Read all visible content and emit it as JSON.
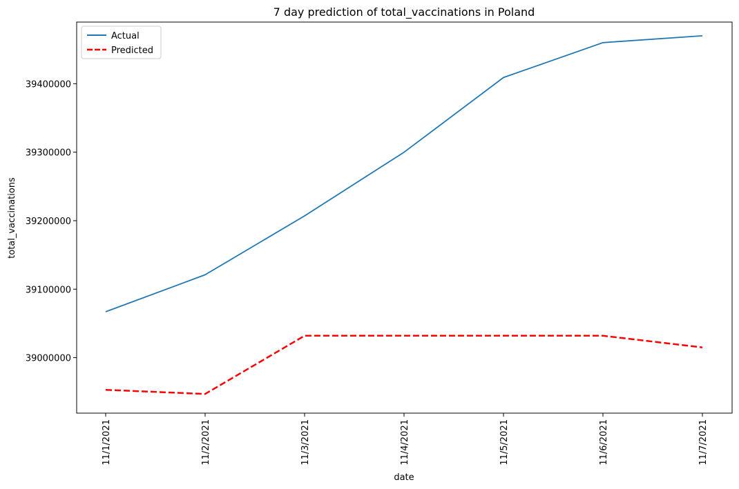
{
  "chart_data": {
    "type": "line",
    "title": "7 day prediction of total_vaccinations in Poland",
    "xlabel": "date",
    "ylabel": "total_vaccinations",
    "categories": [
      "11/1/2021",
      "11/2/2021",
      "11/3/2021",
      "11/4/2021",
      "11/5/2021",
      "11/6/2021",
      "11/7/2021"
    ],
    "y_ticks": [
      39000000,
      39100000,
      39200000,
      39300000,
      39400000
    ],
    "y_tick_labels": [
      "39000000",
      "39100000",
      "39200000",
      "39300000",
      "39400000"
    ],
    "ylim": [
      38919000,
      39490000
    ],
    "grid": false,
    "legend_position": "upper left",
    "series": [
      {
        "name": "Actual",
        "color": "#1f77b4",
        "style": "solid",
        "values": [
          39067000,
          39121000,
          39207000,
          39300000,
          39409000,
          39460000,
          39470000
        ]
      },
      {
        "name": "Predicted",
        "color": "#ff0000",
        "style": "dashed",
        "values": [
          38953000,
          38947000,
          39032000,
          39032000,
          39032000,
          39032000,
          39015000
        ]
      }
    ]
  }
}
